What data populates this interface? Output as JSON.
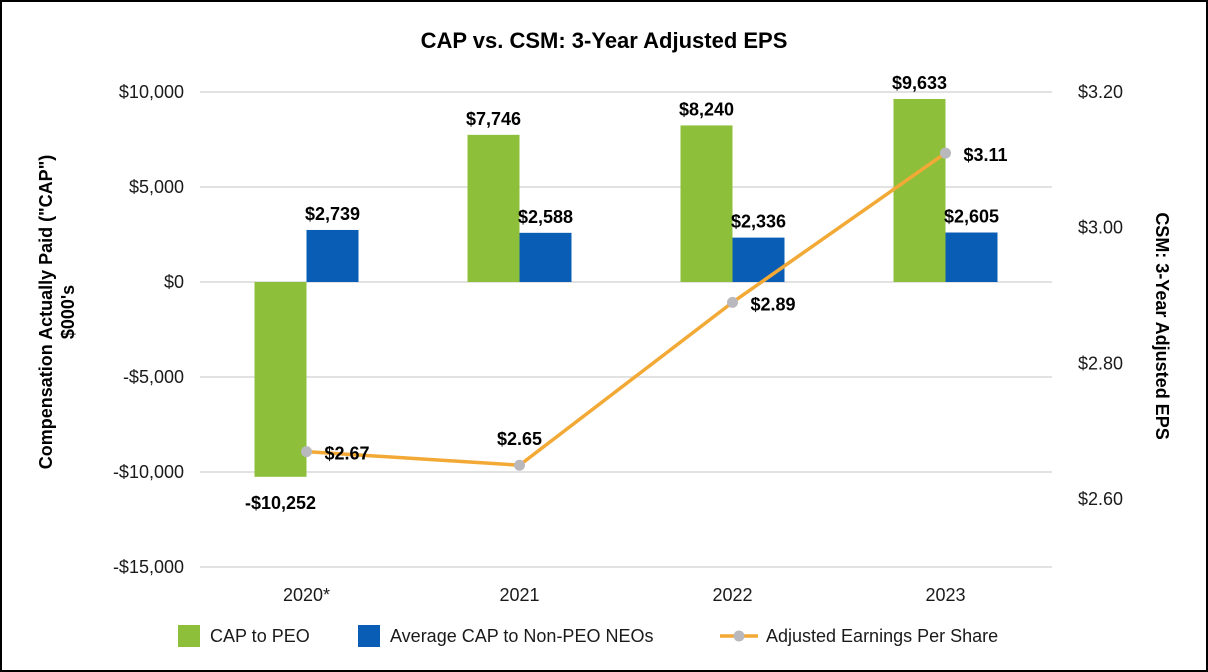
{
  "chart_data": {
    "type": "bar",
    "title": "CAP vs. CSM: 3-Year Adjusted EPS",
    "categories": [
      "2020*",
      "2021",
      "2022",
      "2023"
    ],
    "ylabel_line1": "Compensation Actually Paid (\"CAP\")",
    "ylabel_line2": "$000's",
    "y2label": "CSM: 3-Year Adjusted EPS",
    "ylim": [
      -15000,
      10000
    ],
    "yticks": [
      10000,
      5000,
      0,
      -5000,
      -10000,
      -15000
    ],
    "ytick_labels": [
      "$10,000",
      "$5,000",
      "$0",
      "-$5,000",
      "-$10,000",
      "-$15,000"
    ],
    "y2lim": [
      2.5,
      3.2
    ],
    "y2ticks": [
      3.2,
      3.0,
      2.8,
      2.6
    ],
    "y2tick_labels": [
      "$3.20",
      "$3.00",
      "$2.80",
      "$2.60"
    ],
    "grid": true,
    "legend_position": "bottom",
    "series": [
      {
        "name": "CAP to PEO",
        "type": "bar",
        "axis": "left",
        "color": "#8dbf3b",
        "values": [
          -10252,
          7746,
          8240,
          9633
        ],
        "labels": [
          "-$10,252",
          "$7,746",
          "$8,240",
          "$9,633"
        ]
      },
      {
        "name": "Average CAP to Non-PEO NEOs",
        "type": "bar",
        "axis": "left",
        "color": "#0a5db5",
        "values": [
          2739,
          2588,
          2336,
          2605
        ],
        "labels": [
          "$2,739",
          "$2,588",
          "$2,336",
          "$2,605"
        ]
      },
      {
        "name": "Adjusted Earnings Per Share",
        "type": "line",
        "axis": "right",
        "color": "#f2a935",
        "marker_color": "#b9b9bd",
        "values": [
          2.67,
          2.65,
          2.89,
          3.11
        ],
        "labels": [
          "$2.67",
          "$2.65",
          "$2.89",
          "$3.11"
        ]
      }
    ]
  }
}
